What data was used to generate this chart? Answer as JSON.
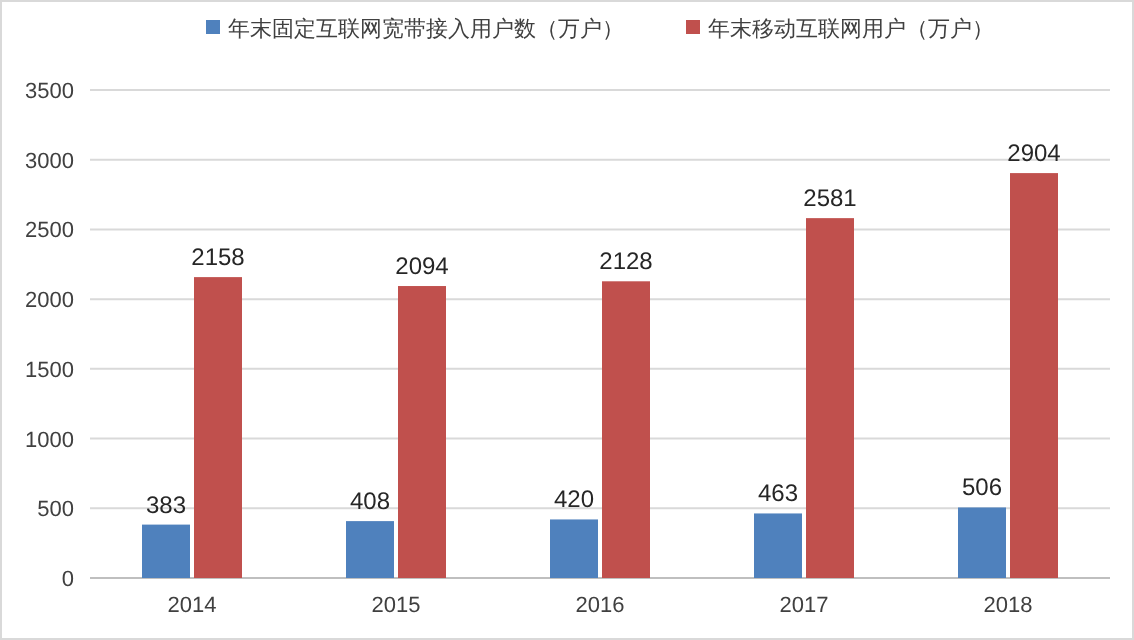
{
  "chart_data": {
    "type": "bar",
    "categories": [
      "2014",
      "2015",
      "2016",
      "2017",
      "2018"
    ],
    "series": [
      {
        "name": "年末固定互联网宽带接入用户数（万户）",
        "color": "#4f81bd",
        "values": [
          383,
          408,
          420,
          463,
          506
        ]
      },
      {
        "name": "年末移动互联网用户（万户）",
        "color": "#c0504d",
        "values": [
          2158,
          2094,
          2128,
          2581,
          2904
        ]
      }
    ],
    "ylim": [
      0,
      3500
    ],
    "yticks": [
      0,
      500,
      1000,
      1500,
      2000,
      2500,
      3000,
      3500
    ],
    "grid": "y",
    "legend": "top",
    "data_labels": true
  }
}
